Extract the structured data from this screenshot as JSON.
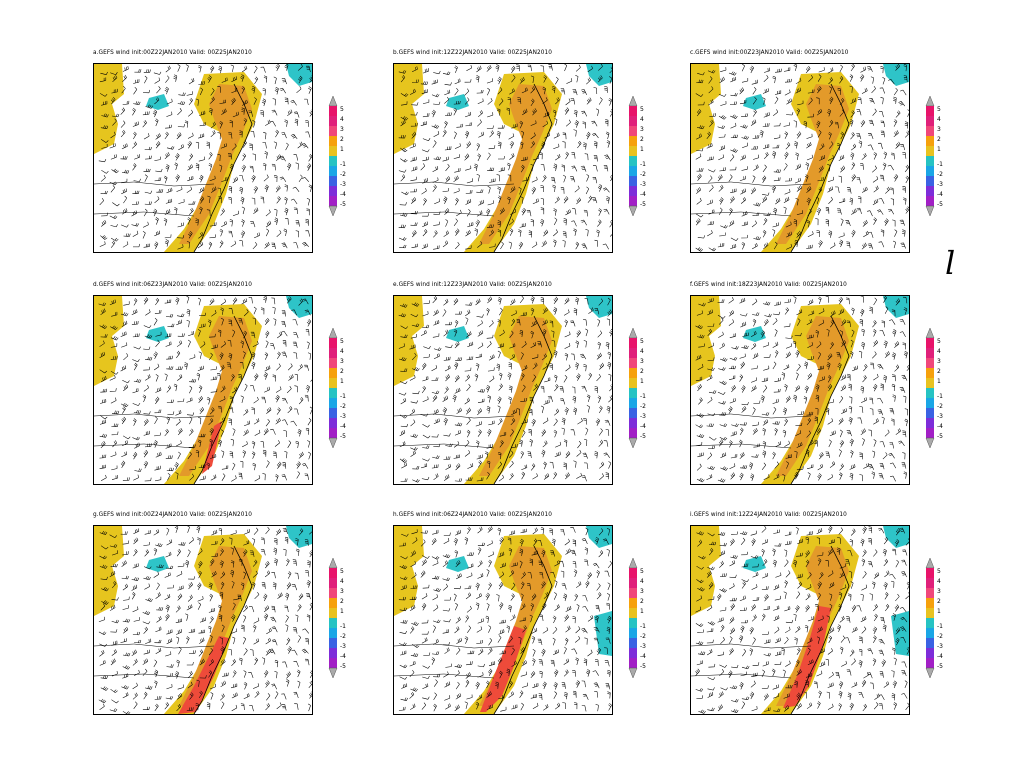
{
  "page_letter": "l",
  "colorbar": {
    "labels": [
      "5",
      "4",
      "3",
      "2",
      "1",
      "-1",
      "-2",
      "-3",
      "-4",
      "-5"
    ],
    "colors": [
      "#e8136a",
      "#e0207a",
      "#f0477a",
      "#f6a10c",
      "#e8c21f",
      "#26c3c3",
      "#1aa6e6",
      "#3a62e3",
      "#7d2dd9",
      "#a21fc6"
    ]
  },
  "colors": {
    "yellow": "#e6c51e",
    "orange": "#e39a2a",
    "red": "#ee4b3a",
    "pink": "#e63a7a",
    "cyan": "#2ec4c8",
    "barbs": "#000000"
  },
  "panels": [
    {
      "title": "a.GEFS  wind  init:00Z22JAN2010  Valid:  00Z25JAN2010"
    },
    {
      "title": "b.GEFS  wind  init:12Z22JAN2010  Valid:  00Z25JAN2010"
    },
    {
      "title": "c.GEFS  wind  init:00Z23JAN2010  Valid:  00Z25JAN2010"
    },
    {
      "title": "d.GEFS  wind  init:06Z23JAN2010  Valid:  00Z25JAN2010"
    },
    {
      "title": "e.GEFS  wind  init:12Z23JAN2010  Valid:  00Z25JAN2010"
    },
    {
      "title": "f.GEFS  wind  init:18Z23JAN2010  Valid:  00Z25JAN2010"
    },
    {
      "title": "g.GEFS  wind  init:00Z24JAN2010  Valid:  00Z25JAN2010"
    },
    {
      "title": "h.GEFS  wind  init:06Z24JAN2010  Valid:  00Z25JAN2010"
    },
    {
      "title": "i.GEFS  wind  init:12Z24JAN2010  Valid:  00Z25JAN2010"
    }
  ]
}
